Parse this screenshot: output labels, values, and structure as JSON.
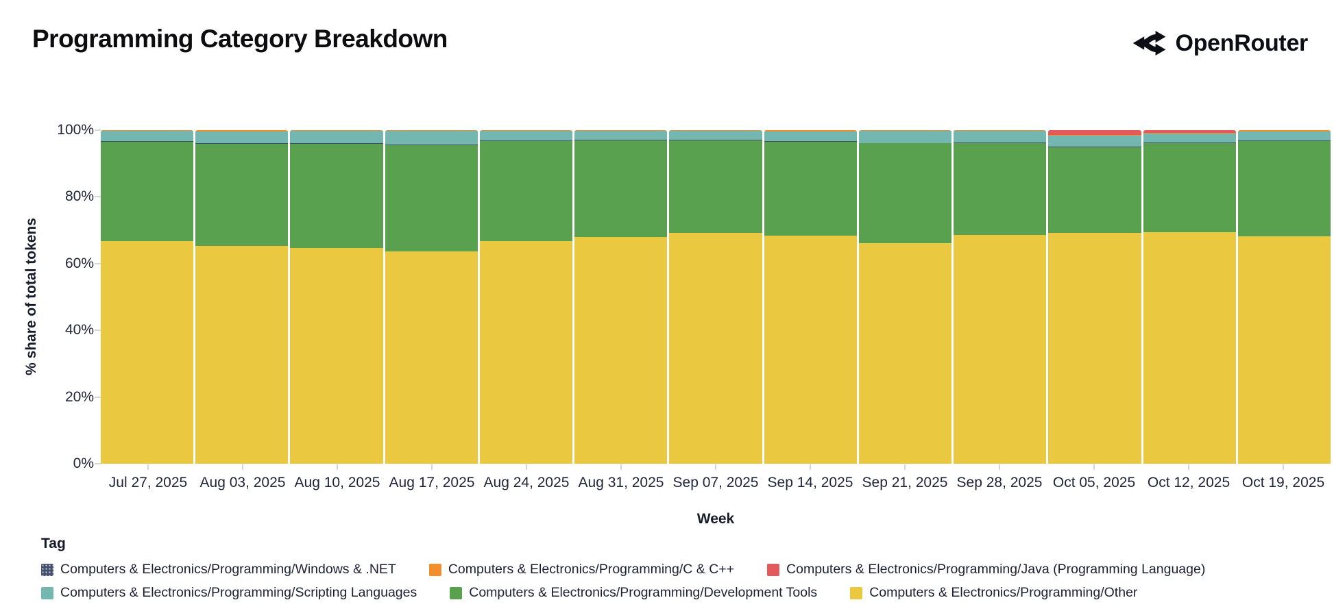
{
  "header": {
    "brand": "OpenRouter"
  },
  "chart_data": {
    "type": "bar",
    "variant": "stacked-100-percent",
    "title": "Programming Category Breakdown",
    "xlabel": "Week",
    "ylabel": "% share of total tokens",
    "ylim": [
      0,
      100
    ],
    "yticks": [
      {
        "value": 0,
        "label": "0%"
      },
      {
        "value": 20,
        "label": "20%"
      },
      {
        "value": 40,
        "label": "40%"
      },
      {
        "value": 60,
        "label": "60%"
      },
      {
        "value": 80,
        "label": "80%"
      },
      {
        "value": 100,
        "label": "100%"
      }
    ],
    "legend_title": "Tag",
    "legend_position": "bottom",
    "grid": false,
    "categories": [
      "Jul 27, 2025",
      "Aug 03, 2025",
      "Aug 10, 2025",
      "Aug 17, 2025",
      "Aug 24, 2025",
      "Aug 31, 2025",
      "Sep 07, 2025",
      "Sep 14, 2025",
      "Sep 21, 2025",
      "Sep 28, 2025",
      "Oct 05, 2025",
      "Oct 12, 2025",
      "Oct 19, 2025"
    ],
    "series": [
      {
        "key": "other",
        "name": "Computers & Electronics/Programming/Other",
        "color": "#eac83f",
        "values": [
          66.7,
          65.2,
          64.7,
          63.7,
          66.8,
          68.0,
          69.2,
          68.4,
          66.1,
          68.6,
          69.3,
          69.5,
          68.2
        ]
      },
      {
        "key": "development-tools",
        "name": "Computers & Electronics/Programming/Development Tools",
        "color": "#59a14f",
        "values": [
          29.9,
          30.8,
          31.2,
          31.8,
          29.9,
          29.0,
          27.7,
          28.2,
          29.9,
          27.6,
          25.6,
          26.7,
          28.5
        ]
      },
      {
        "key": "windows-dotnet",
        "name": "Computers & Electronics/Programming/Windows & .NET",
        "color": "#42506b",
        "pattern": "dots",
        "values": [
          0.2,
          0.2,
          0.2,
          0.2,
          0.2,
          0.2,
          0.2,
          0.2,
          0.2,
          0.2,
          0.2,
          0.2,
          0.2
        ]
      },
      {
        "key": "scripting-languages",
        "name": "Computers & Electronics/Programming/Scripting Languages",
        "color": "#74b6b0",
        "values": [
          2.9,
          3.5,
          3.6,
          4.0,
          2.8,
          2.5,
          2.6,
          2.9,
          3.5,
          3.3,
          3.3,
          2.5,
          2.8
        ]
      },
      {
        "key": "c-cpp",
        "name": "Computers & Electronics/Programming/C & C++",
        "color": "#f28e2b",
        "values": [
          0.3,
          0.3,
          0.3,
          0.3,
          0.3,
          0.3,
          0.3,
          0.3,
          0.3,
          0.3,
          0.2,
          0.2,
          0.3
        ]
      },
      {
        "key": "java",
        "name": "Computers & Electronics/Programming/Java (Programming Language)",
        "color": "#e4595b",
        "values": [
          0.0,
          0.0,
          0.0,
          0.0,
          0.0,
          0.0,
          0.0,
          0.0,
          0.0,
          0.0,
          1.4,
          0.9,
          0.0
        ]
      }
    ],
    "legend_rows": [
      [
        "windows-dotnet",
        "c-cpp",
        "java"
      ],
      [
        "scripting-languages",
        "development-tools",
        "other"
      ]
    ]
  }
}
